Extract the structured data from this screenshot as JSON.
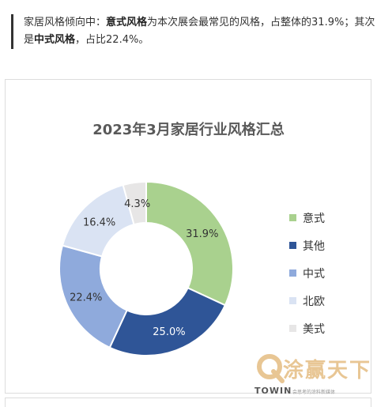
{
  "intro": {
    "p1": "家居风格倾向中：",
    "b1": "意式风格",
    "p2": "为本次展会最常见的风格，占整体的31.9%；其次是",
    "b2": "中式风格",
    "p3": "，占比22.4%。"
  },
  "chart_data": {
    "type": "pie",
    "title": "2023年3月家居行业风格汇总",
    "categories": [
      "意式",
      "其他",
      "中式",
      "北欧",
      "美式"
    ],
    "values": [
      31.9,
      25.0,
      22.4,
      16.4,
      4.3
    ],
    "data_labels": [
      "31.9%",
      "25.0%",
      "22.4%",
      "16.4%",
      "4.3%"
    ],
    "colors": [
      "#a9d18e",
      "#2f5597",
      "#8faadc",
      "#dae3f3",
      "#e7e6e6"
    ],
    "label_colors": [
      "#333333",
      "#ffffff",
      "#333333",
      "#333333",
      "#333333"
    ],
    "donut": true,
    "legend_position": "right"
  },
  "watermark": {
    "name": "涂赢天下",
    "brand": "TOWIN",
    "slogan": "会思考的涂料新媒体",
    "color": "#e8c694"
  }
}
